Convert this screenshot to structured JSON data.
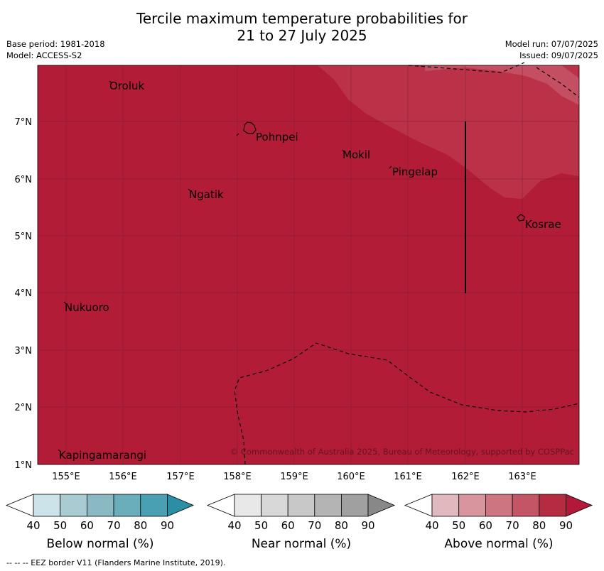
{
  "title_line1": "Tercile maximum temperature probabilities for",
  "title_line2": "21 to 27 July 2025",
  "base_period": "Base period: 1981-2018",
  "model": "Model: ACCESS-S2",
  "model_run": "Model run: 07/07/2025",
  "issued": "Issued: 09/07/2025",
  "map": {
    "lon_labels": [
      "155°E",
      "156°E",
      "157°E",
      "158°E",
      "159°E",
      "160°E",
      "161°E",
      "162°E",
      "163°E"
    ],
    "lat_labels": [
      "1°N",
      "2°N",
      "3°N",
      "4°N",
      "5°N",
      "6°N",
      "7°N"
    ],
    "places": [
      {
        "name": "Oroluk"
      },
      {
        "name": "Pohnpei"
      },
      {
        "name": "Mokil"
      },
      {
        "name": "Pingelap"
      },
      {
        "name": "Ngatik"
      },
      {
        "name": "Kosrae"
      },
      {
        "name": "Nukuoro"
      },
      {
        "name": "Kapingamarangi"
      }
    ],
    "copyright": "© Commonwealth of Australia 2025, Bureau of Meteorology, supported by COSPPac",
    "colors": {
      "above_90": "#b31c37",
      "above_80": "#bb3148",
      "above_70": "#c44f62"
    }
  },
  "colorbars": [
    {
      "label": "Below normal (%)",
      "ticks": [
        "40",
        "50",
        "60",
        "70",
        "80",
        "90"
      ],
      "colors": [
        "#ffffff",
        "#cce3e9",
        "#a9ccd3",
        "#8ab9c3",
        "#6aaebc",
        "#4aa0b3",
        "#2a8fa5"
      ]
    },
    {
      "label": "Near normal (%)",
      "ticks": [
        "40",
        "50",
        "60",
        "70",
        "80",
        "90"
      ],
      "colors": [
        "#ffffff",
        "#e8e8e8",
        "#d8d8d8",
        "#c8c8c8",
        "#b4b4b4",
        "#a0a0a0",
        "#888888"
      ]
    },
    {
      "label": "Above normal (%)",
      "ticks": [
        "40",
        "50",
        "60",
        "70",
        "80",
        "90"
      ],
      "colors": [
        "#ffffff",
        "#e2b8bf",
        "#d9959e",
        "#cd7580",
        "#c35564",
        "#b52c42",
        "#b1183a"
      ]
    }
  ],
  "footer": "--  --  -- EEZ border V11 (Flanders Marine Institute, 2019)."
}
